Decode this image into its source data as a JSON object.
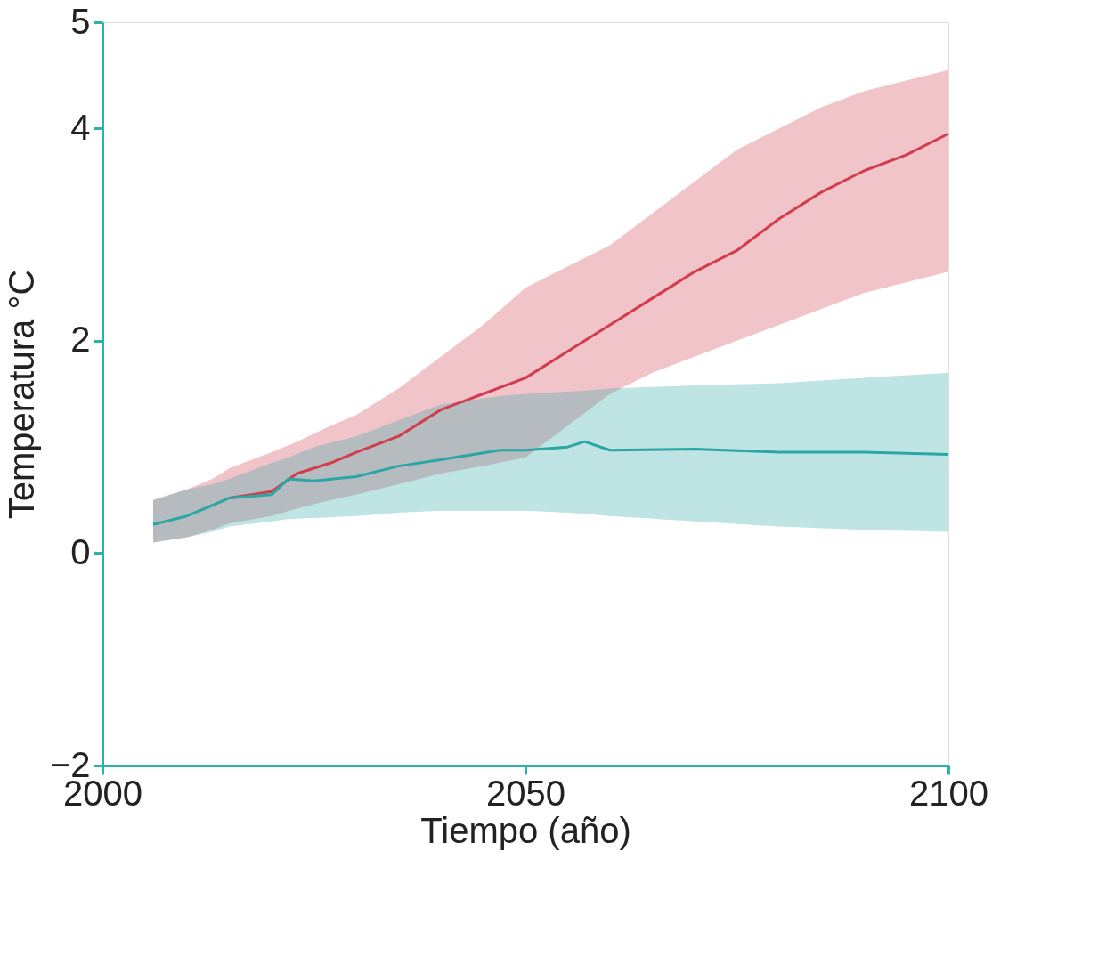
{
  "chart_data": {
    "type": "line",
    "xlabel": "Tiempo (año)",
    "ylabel": "Temperatura °C",
    "xlim": [
      2000,
      2100
    ],
    "xticks": [
      2000,
      2050,
      2100
    ],
    "ylim": [
      -2,
      5
    ],
    "yticks": [
      -2,
      0,
      2,
      4,
      5
    ],
    "line_style": "solid",
    "series": [
      {
        "color": "#d23c4c",
        "x": [
          2006,
          2010,
          2013,
          2015,
          2020,
          2023,
          2027,
          2030,
          2035,
          2040,
          2045,
          2050,
          2055,
          2060,
          2065,
          2070,
          2075,
          2080,
          2085,
          2090,
          2095,
          2100
        ],
        "values": [
          null,
          null,
          null,
          0.52,
          0.58,
          0.75,
          0.85,
          0.95,
          1.1,
          1.35,
          1.5,
          1.65,
          1.9,
          2.15,
          2.4,
          2.65,
          2.85,
          3.15,
          3.4,
          3.6,
          3.75,
          3.95
        ],
        "lower": [
          0.1,
          0.15,
          0.22,
          0.28,
          0.35,
          0.42,
          0.5,
          0.55,
          0.65,
          0.75,
          0.82,
          0.9,
          1.2,
          1.5,
          1.7,
          1.85,
          2.0,
          2.15,
          2.3,
          2.45,
          2.55,
          2.65
        ],
        "upper": [
          0.5,
          0.6,
          0.7,
          0.8,
          0.95,
          1.05,
          1.2,
          1.3,
          1.55,
          1.85,
          2.15,
          2.5,
          2.7,
          2.9,
          3.2,
          3.5,
          3.8,
          4.0,
          4.2,
          4.35,
          4.45,
          4.55
        ]
      },
      {
        "color": "#2aa7a5",
        "x": [
          2006,
          2010,
          2013,
          2015,
          2020,
          2022,
          2025,
          2030,
          2035,
          2040,
          2047,
          2050,
          2055,
          2057,
          2060,
          2070,
          2080,
          2090,
          2100
        ],
        "values": [
          0.27,
          0.35,
          0.45,
          0.52,
          0.55,
          0.7,
          0.68,
          0.72,
          0.82,
          0.88,
          0.97,
          0.97,
          1.0,
          1.05,
          0.97,
          0.98,
          0.95,
          0.95,
          0.93
        ],
        "lower": [
          0.1,
          0.15,
          0.2,
          0.25,
          0.3,
          0.32,
          0.33,
          0.35,
          0.38,
          0.4,
          0.4,
          0.4,
          0.38,
          0.37,
          0.35,
          0.3,
          0.25,
          0.22,
          0.2
        ],
        "upper": [
          0.5,
          0.6,
          0.65,
          0.7,
          0.85,
          0.9,
          1.0,
          1.1,
          1.25,
          1.4,
          1.48,
          1.5,
          1.52,
          1.53,
          1.55,
          1.58,
          1.6,
          1.65,
          1.7
        ]
      }
    ]
  }
}
